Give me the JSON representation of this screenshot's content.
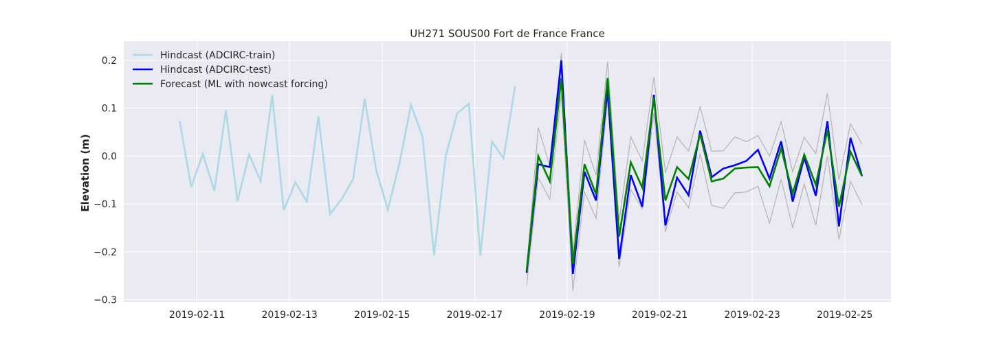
{
  "chart_data": {
    "type": "line",
    "title": "UH271 SOUS00 Fort de France France",
    "xlabel": "",
    "ylabel": "Elevation (m)",
    "xlim": [
      "2019-02-09T10:00",
      "2019-02-26T00:00"
    ],
    "ylim": [
      -0.305,
      0.24
    ],
    "xticks": [
      "2019-02-11",
      "2019-02-13",
      "2019-02-15",
      "2019-02-17",
      "2019-02-19",
      "2019-02-21",
      "2019-02-23",
      "2019-02-25"
    ],
    "yticks": [
      -0.3,
      -0.2,
      -0.1,
      0.0,
      0.1,
      0.2
    ],
    "ytick_labels": [
      "−0.3",
      "−0.2",
      "−0.1",
      "0.0",
      "0.1",
      "0.2"
    ],
    "grid": true,
    "background": "#eaeaf2",
    "legend_position": "upper-left",
    "series": [
      {
        "name": "Hindcast (ADCIRC-train)",
        "color": "#add8e6",
        "role": "line",
        "x": [
          "2019-02-10T15:00",
          "2019-02-10T21:00",
          "2019-02-11T03:00",
          "2019-02-11T09:00",
          "2019-02-11T15:00",
          "2019-02-11T21:00",
          "2019-02-12T03:00",
          "2019-02-12T09:00",
          "2019-02-12T15:00",
          "2019-02-12T21:00",
          "2019-02-13T03:00",
          "2019-02-13T09:00",
          "2019-02-13T15:00",
          "2019-02-13T21:00",
          "2019-02-14T03:00",
          "2019-02-14T09:00",
          "2019-02-14T15:00",
          "2019-02-14T21:00",
          "2019-02-15T03:00",
          "2019-02-15T09:00",
          "2019-02-15T15:00",
          "2019-02-15T21:00",
          "2019-02-16T03:00",
          "2019-02-16T09:00",
          "2019-02-16T15:00",
          "2019-02-16T21:00",
          "2019-02-17T03:00",
          "2019-02-17T09:00",
          "2019-02-17T15:00",
          "2019-02-17T21:00"
        ],
        "y": [
          0.074,
          -0.065,
          0.005,
          -0.073,
          0.096,
          -0.094,
          0.003,
          -0.052,
          0.127,
          -0.113,
          -0.055,
          -0.095,
          0.083,
          -0.121,
          -0.09,
          -0.048,
          0.12,
          -0.03,
          -0.112,
          -0.015,
          0.107,
          0.04,
          -0.207,
          0.0,
          0.09,
          0.109,
          -0.208,
          0.03,
          -0.005,
          0.146
        ]
      },
      {
        "name": "",
        "color": "#b4b4b4",
        "role": "upper-band",
        "x": [
          "2019-02-18T03:00",
          "2019-02-18T09:00",
          "2019-02-18T15:00",
          "2019-02-18T21:00",
          "2019-02-19T03:00",
          "2019-02-19T09:00",
          "2019-02-19T15:00",
          "2019-02-19T21:00",
          "2019-02-20T03:00",
          "2019-02-20T09:00",
          "2019-02-20T15:00",
          "2019-02-20T21:00",
          "2019-02-21T03:00",
          "2019-02-21T09:00",
          "2019-02-21T15:00",
          "2019-02-21T21:00",
          "2019-02-22T03:00",
          "2019-02-22T09:00",
          "2019-02-22T15:00",
          "2019-02-22T21:00",
          "2019-02-23T03:00",
          "2019-02-23T09:00",
          "2019-02-23T15:00",
          "2019-02-23T21:00",
          "2019-02-24T03:00",
          "2019-02-24T09:00",
          "2019-02-24T15:00",
          "2019-02-24T21:00",
          "2019-02-25T03:00",
          "2019-02-25T09:00"
        ],
        "y": [
          -0.24,
          0.06,
          -0.02,
          0.215,
          -0.2,
          0.033,
          -0.04,
          0.198,
          -0.135,
          0.04,
          -0.01,
          0.165,
          -0.035,
          0.04,
          0.01,
          0.103,
          0.01,
          0.011,
          0.04,
          0.03,
          0.043,
          0.0,
          0.072,
          -0.033,
          0.039,
          0.005,
          0.131,
          -0.05,
          0.067,
          0.025
        ]
      },
      {
        "name": "",
        "color": "#b4b4b4",
        "role": "lower-band",
        "x": [
          "2019-02-18T03:00",
          "2019-02-18T09:00",
          "2019-02-18T15:00",
          "2019-02-18T21:00",
          "2019-02-19T03:00",
          "2019-02-19T09:00",
          "2019-02-19T15:00",
          "2019-02-19T21:00",
          "2019-02-20T03:00",
          "2019-02-20T09:00",
          "2019-02-20T15:00",
          "2019-02-20T21:00",
          "2019-02-21T03:00",
          "2019-02-21T09:00",
          "2019-02-21T15:00",
          "2019-02-21T21:00",
          "2019-02-22T03:00",
          "2019-02-22T09:00",
          "2019-02-22T15:00",
          "2019-02-22T21:00",
          "2019-02-23T03:00",
          "2019-02-23T09:00",
          "2019-02-23T15:00",
          "2019-02-23T21:00",
          "2019-02-24T03:00",
          "2019-02-24T09:00",
          "2019-02-24T15:00",
          "2019-02-24T21:00",
          "2019-02-25T03:00",
          "2019-02-25T09:00"
        ],
        "y": [
          -0.27,
          -0.045,
          -0.09,
          0.13,
          -0.282,
          -0.075,
          -0.13,
          0.12,
          -0.232,
          -0.07,
          -0.11,
          0.09,
          -0.158,
          -0.075,
          -0.108,
          0.005,
          -0.103,
          -0.109,
          -0.077,
          -0.075,
          -0.063,
          -0.14,
          -0.048,
          -0.15,
          -0.058,
          -0.145,
          0.0,
          -0.174,
          -0.053,
          -0.101
        ]
      },
      {
        "name": "Hindcast (ADCIRC-test)",
        "color": "#0000ff",
        "role": "line",
        "x": [
          "2019-02-18T03:00",
          "2019-02-18T09:00",
          "2019-02-18T15:00",
          "2019-02-18T21:00",
          "2019-02-19T03:00",
          "2019-02-19T09:00",
          "2019-02-19T15:00",
          "2019-02-19T21:00",
          "2019-02-20T03:00",
          "2019-02-20T09:00",
          "2019-02-20T15:00",
          "2019-02-20T21:00",
          "2019-02-21T03:00",
          "2019-02-21T09:00",
          "2019-02-21T15:00",
          "2019-02-21T21:00",
          "2019-02-22T03:00",
          "2019-02-22T09:00",
          "2019-02-22T15:00",
          "2019-02-22T21:00",
          "2019-02-23T03:00",
          "2019-02-23T09:00",
          "2019-02-23T15:00",
          "2019-02-23T21:00",
          "2019-02-24T03:00",
          "2019-02-24T09:00",
          "2019-02-24T15:00",
          "2019-02-24T21:00",
          "2019-02-25T03:00",
          "2019-02-25T09:00"
        ],
        "y": [
          -0.244,
          -0.017,
          -0.023,
          0.2,
          -0.246,
          -0.033,
          -0.093,
          0.14,
          -0.215,
          -0.04,
          -0.106,
          0.128,
          -0.145,
          -0.045,
          -0.082,
          0.053,
          -0.044,
          -0.026,
          -0.019,
          -0.01,
          0.013,
          -0.047,
          0.031,
          -0.095,
          -0.003,
          -0.083,
          0.073,
          -0.147,
          0.038,
          -0.042
        ]
      },
      {
        "name": "Forecast (ML with nowcast forcing)",
        "color": "#008000",
        "role": "line",
        "x": [
          "2019-02-18T03:00",
          "2019-02-18T09:00",
          "2019-02-18T15:00",
          "2019-02-18T21:00",
          "2019-02-19T03:00",
          "2019-02-19T09:00",
          "2019-02-19T15:00",
          "2019-02-19T21:00",
          "2019-02-20T03:00",
          "2019-02-20T09:00",
          "2019-02-20T15:00",
          "2019-02-20T21:00",
          "2019-02-21T03:00",
          "2019-02-21T09:00",
          "2019-02-21T15:00",
          "2019-02-21T21:00",
          "2019-02-22T03:00",
          "2019-02-22T09:00",
          "2019-02-22T15:00",
          "2019-02-22T21:00",
          "2019-02-23T03:00",
          "2019-02-23T09:00",
          "2019-02-23T15:00",
          "2019-02-23T21:00",
          "2019-02-24T03:00",
          "2019-02-24T09:00",
          "2019-02-24T15:00",
          "2019-02-24T21:00",
          "2019-02-25T03:00",
          "2019-02-25T09:00"
        ],
        "y": [
          -0.24,
          0.0,
          -0.053,
          0.163,
          -0.225,
          -0.017,
          -0.08,
          0.163,
          -0.168,
          -0.013,
          -0.066,
          0.122,
          -0.093,
          -0.023,
          -0.048,
          0.046,
          -0.053,
          -0.047,
          -0.026,
          -0.024,
          -0.023,
          -0.063,
          0.016,
          -0.078,
          0.003,
          -0.06,
          0.054,
          -0.106,
          0.009,
          -0.042
        ]
      }
    ]
  }
}
